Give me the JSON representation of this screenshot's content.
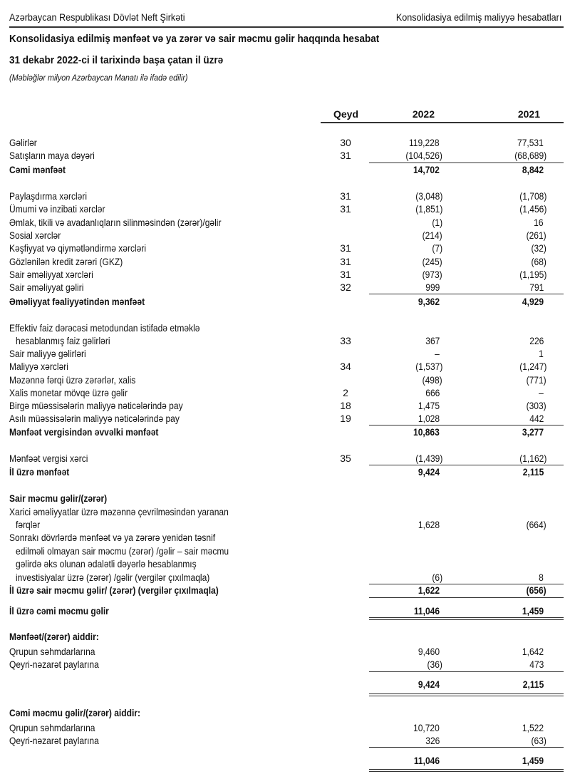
{
  "header": {
    "left": "Azərbaycan Respublikası Dövlət Neft Şirkəti",
    "right": "Konsolidasiya edilmiş maliyyə hesabatları"
  },
  "title": "Konsolidasiya edilmiş mənfəət və ya zərər və sair məcmu gəlir haqqında hesabat",
  "subtitle": "31 dekabr 2022-ci il tarixində başa çatan il üzrə",
  "note": "(Məbləğlər milyon Azərbaycan Manatı ilə ifadə edilir)",
  "columns": {
    "note": "Qeyd",
    "y2022": "2022",
    "y2021": "2021"
  },
  "rows": [
    {
      "label": "Gəlirlər",
      "note": "30",
      "y2022": "119,228",
      "y2021": "77,531"
    },
    {
      "label": "Satışların maya dəyəri",
      "note": "31",
      "y2022": "(104,526)",
      "y2021": "(68,689)"
    },
    {
      "label": "Cəmi mənfəət",
      "note": "",
      "y2022": "14,702",
      "y2021": "8,842",
      "bold": true
    },
    {
      "label": "Paylaşdırma xərcləri",
      "note": "31",
      "y2022": "(3,048)",
      "y2021": "(1,708)"
    },
    {
      "label": "Ümumi və inzibati xərclər",
      "note": "31",
      "y2022": "(1,851)",
      "y2021": "(1,456)"
    },
    {
      "label": "Əmlak, tikili və avadanlıqların silinməsindən (zərər)/gəlir",
      "note": "",
      "y2022": "(1)",
      "y2021": "16"
    },
    {
      "label": "Sosial xərclər",
      "note": "",
      "y2022": "(214)",
      "y2021": "(261)"
    },
    {
      "label": "Kəşfiyyat və qiymətləndirmə xərcləri",
      "note": "31",
      "y2022": "(7)",
      "y2021": "(32)"
    },
    {
      "label": "Gözlənilən kredit zərəri (GKZ)",
      "note": "31",
      "y2022": "(245)",
      "y2021": "(68)"
    },
    {
      "label": "Sair əməliyyat xərcləri",
      "note": "31",
      "y2022": "(973)",
      "y2021": "(1,195)"
    },
    {
      "label": "Sair əməliyyat gəliri",
      "note": "32",
      "y2022": "999",
      "y2021": "791"
    },
    {
      "label": "Əməliyyat fəaliyyətindən mənfəət",
      "note": "",
      "y2022": "9,362",
      "y2021": "4,929",
      "bold": true
    },
    {
      "label": "Effektiv faiz dərəcəsi metodundan istifadə etməklə",
      "note": "",
      "y2022": "",
      "y2021": ""
    },
    {
      "label": "hesablanmış faiz gəlirləri",
      "note": "33",
      "y2022": "367",
      "y2021": "226",
      "indent": true
    },
    {
      "label": "Sair maliyyə gəlirləri",
      "note": "",
      "y2022": "–",
      "y2021": "1"
    },
    {
      "label": "Maliyyə xərcləri",
      "note": "34",
      "y2022": "(1,537)",
      "y2021": "(1,247)"
    },
    {
      "label": "Məzənnə fərqi üzrə zərərlər, xalis",
      "note": "",
      "y2022": "(498)",
      "y2021": "(771)"
    },
    {
      "label": "Xalis monetar mövqe üzrə gəlir",
      "note": "2",
      "y2022": "666",
      "y2021": "–"
    },
    {
      "label": "Birgə müəssisələrin maliyyə nəticələrində pay",
      "note": "18",
      "y2022": "1,475",
      "y2021": "(303)"
    },
    {
      "label": "Asılı müəssisələrin maliyyə nəticələrində pay",
      "note": "19",
      "y2022": "1,028",
      "y2021": "442"
    },
    {
      "label": "Mənfəət vergisindən əvvəlki mənfəət",
      "note": "",
      "y2022": "10,863",
      "y2021": "3,277",
      "bold": true
    },
    {
      "label": "Mənfəət vergisi xərci",
      "note": "35",
      "y2022": "(1,439)",
      "y2021": "(1,162)"
    },
    {
      "label": "İl üzrə mənfəət",
      "note": "",
      "y2022": "9,424",
      "y2021": "2,115",
      "bold": true
    },
    {
      "label": "Sair məcmu gəlir/(zərər)",
      "note": "",
      "y2022": "",
      "y2021": "",
      "bold": true
    },
    {
      "label": "Xarici əməliyyatlar üzrə məzənnə çevrilməsindən yaranan",
      "note": "",
      "y2022": "",
      "y2021": ""
    },
    {
      "label": "fərqlər",
      "note": "",
      "y2022": "1,628",
      "y2021": "(664)",
      "indent": true
    },
    {
      "label": "Sonrakı dövrlərdə mənfəət və ya zərərə yenidən təsnif",
      "note": "",
      "y2022": "",
      "y2021": ""
    },
    {
      "label": "edilməli olmayan sair məcmu (zərər) /gəlir – sair məcmu",
      "note": "",
      "y2022": "",
      "y2021": "",
      "indent": true
    },
    {
      "label": "gəlirdə əks olunan ədalətli dəyərlə hesablanmış",
      "note": "",
      "y2022": "",
      "y2021": "",
      "indent": true
    },
    {
      "label": "investisiyalar üzrə (zərər) /gəlir (vergilər çıxılmaqla)",
      "note": "",
      "y2022": "(6)",
      "y2021": "8",
      "indent": true
    },
    {
      "label": "İl üzrə sair məcmu gəlir/ (zərər) (vergilər çıxılmaqla)",
      "note": "",
      "y2022": "1,622",
      "y2021": "(656)",
      "bold": true
    },
    {
      "label": "İl üzrə cəmi məcmu gəlir",
      "note": "",
      "y2022": "11,046",
      "y2021": "1,459",
      "bold": true
    },
    {
      "label": "Mənfəət/(zərər) aiddir:",
      "note": "",
      "y2022": "",
      "y2021": "",
      "bold": true
    },
    {
      "label": "Qrupun səhmdarlarına",
      "note": "",
      "y2022": "9,460",
      "y2021": "1,642"
    },
    {
      "label": "Qeyri-nəzarət paylarına",
      "note": "",
      "y2022": "(36)",
      "y2021": "473"
    },
    {
      "label": "",
      "note": "",
      "y2022": "9,424",
      "y2021": "2,115",
      "bold": true
    },
    {
      "label": "Cəmi məcmu gəlir/(zərər) aiddir:",
      "note": "",
      "y2022": "",
      "y2021": "",
      "bold": true
    },
    {
      "label": "Qrupun səhmdarlarına",
      "note": "",
      "y2022": "10,720",
      "y2021": "1,522"
    },
    {
      "label": "Qeyri-nəzarət paylarına",
      "note": "",
      "y2022": "326",
      "y2021": "(63)"
    },
    {
      "label": "",
      "note": "",
      "y2022": "11,046",
      "y2021": "1,459",
      "bold": true
    }
  ]
}
